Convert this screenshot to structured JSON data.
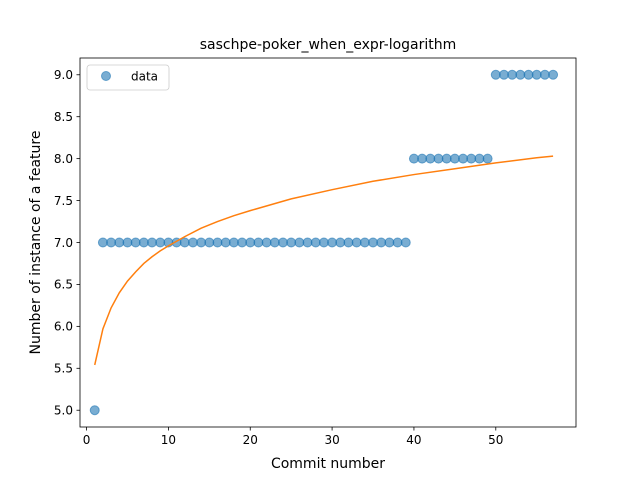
{
  "chart_data": {
    "type": "scatter",
    "title": "saschpe-poker_when_expr-logarithm",
    "xlabel": "Commit number",
    "ylabel": "Number of instance of a feature",
    "xlim": [
      -0.8,
      59.8
    ],
    "ylim": [
      4.8,
      9.2
    ],
    "xticks": [
      0,
      10,
      20,
      30,
      40,
      50
    ],
    "xtick_labels": [
      "0",
      "10",
      "20",
      "30",
      "40",
      "50"
    ],
    "yticks": [
      5.0,
      5.5,
      6.0,
      6.5,
      7.0,
      7.5,
      8.0,
      8.5,
      9.0
    ],
    "ytick_labels": [
      "5.0",
      "5.5",
      "6.0",
      "6.5",
      "7.0",
      "7.5",
      "8.0",
      "8.5",
      "9.0"
    ],
    "grid": false,
    "legend_position": "top-left",
    "series": [
      {
        "name": "data",
        "kind": "scatter",
        "color": "#1f77b4",
        "x": [
          1,
          2,
          3,
          4,
          5,
          6,
          7,
          8,
          9,
          10,
          11,
          12,
          13,
          14,
          15,
          16,
          17,
          18,
          19,
          20,
          21,
          22,
          23,
          24,
          25,
          26,
          27,
          28,
          29,
          30,
          31,
          32,
          33,
          34,
          35,
          36,
          37,
          38,
          39,
          40,
          41,
          42,
          43,
          44,
          45,
          46,
          47,
          48,
          49,
          50,
          51,
          52,
          53,
          54,
          55,
          56,
          57
        ],
        "y": [
          5,
          7,
          7,
          7,
          7,
          7,
          7,
          7,
          7,
          7,
          7,
          7,
          7,
          7,
          7,
          7,
          7,
          7,
          7,
          7,
          7,
          7,
          7,
          7,
          7,
          7,
          7,
          7,
          7,
          7,
          7,
          7,
          7,
          7,
          7,
          7,
          7,
          7,
          7,
          8,
          8,
          8,
          8,
          8,
          8,
          8,
          8,
          8,
          8,
          9,
          9,
          9,
          9,
          9,
          9,
          9,
          9
        ]
      },
      {
        "kind": "line",
        "color": "#ff7f0e",
        "x": [
          1,
          2,
          3,
          4,
          5,
          6,
          7,
          8,
          9,
          10,
          12,
          14,
          16,
          18,
          20,
          25,
          30,
          35,
          40,
          45,
          50,
          55,
          57
        ],
        "y": [
          5.54,
          5.97,
          6.22,
          6.4,
          6.54,
          6.65,
          6.75,
          6.83,
          6.9,
          6.96,
          7.07,
          7.17,
          7.25,
          7.32,
          7.38,
          7.52,
          7.63,
          7.73,
          7.81,
          7.88,
          7.95,
          8.01,
          8.03
        ]
      }
    ]
  }
}
